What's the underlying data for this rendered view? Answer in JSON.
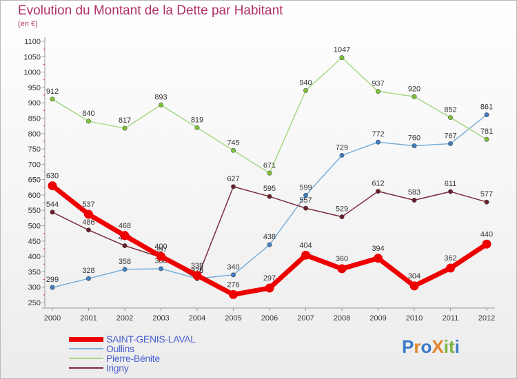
{
  "header": {
    "title": "Evolution du Montant de la Dette par Habitant",
    "subtitle": "(en €)"
  },
  "logo": {
    "text": "ProXiti",
    "letters": [
      {
        "ch": "P",
        "color": "#3a78c8"
      },
      {
        "ch": "r",
        "color": "#e0862a"
      },
      {
        "ch": "o",
        "color": "#3a78c8"
      },
      {
        "ch": "X",
        "color": "#e0862a"
      },
      {
        "ch": "i",
        "color": "#7cb342"
      },
      {
        "ch": "t",
        "color": "#7cb342"
      },
      {
        "ch": "i",
        "color": "#3a78c8"
      }
    ]
  },
  "chart_data": {
    "type": "line",
    "title": "Evolution du Montant de la Dette par Habitant",
    "subtitle": "(en €)",
    "x": [
      "2000",
      "2001",
      "2002",
      "2003",
      "2004",
      "2005",
      "2006",
      "2007",
      "2008",
      "2009",
      "2010",
      "2011",
      "2012"
    ],
    "ylim": [
      250,
      1100
    ],
    "yticks": [
      250,
      300,
      350,
      400,
      450,
      500,
      550,
      600,
      650,
      700,
      750,
      800,
      850,
      900,
      950,
      1000,
      1050,
      1100
    ],
    "grid": false,
    "legend_position": "bottom-left",
    "series": [
      {
        "name": "SAINT-GENIS-LAVAL",
        "color": "#ee0000",
        "point_color": "#ee0000",
        "width": 7,
        "values": [
          630,
          537,
          468,
          400,
          338,
          276,
          297,
          404,
          360,
          394,
          304,
          362,
          440
        ]
      },
      {
        "name": "Oullins",
        "color": "#7aaed8",
        "point_color": "#3d7fc4",
        "width": 1.5,
        "values": [
          299,
          328,
          358,
          360,
          328,
          340,
          438,
          599,
          729,
          772,
          760,
          767,
          861
        ]
      },
      {
        "name": "Pierre-Bénite",
        "color": "#a6d884",
        "point_color": "#7cc436",
        "width": 1.5,
        "values": [
          912,
          840,
          817,
          893,
          819,
          745,
          671,
          940,
          1047,
          937,
          920,
          852,
          781
        ]
      },
      {
        "name": "Irigny",
        "color": "#7a2a38",
        "point_color": "#6a1c28",
        "width": 1.5,
        "values": [
          544,
          486,
          435,
          397,
          328,
          627,
          595,
          557,
          529,
          612,
          583,
          611,
          577
        ]
      }
    ]
  }
}
